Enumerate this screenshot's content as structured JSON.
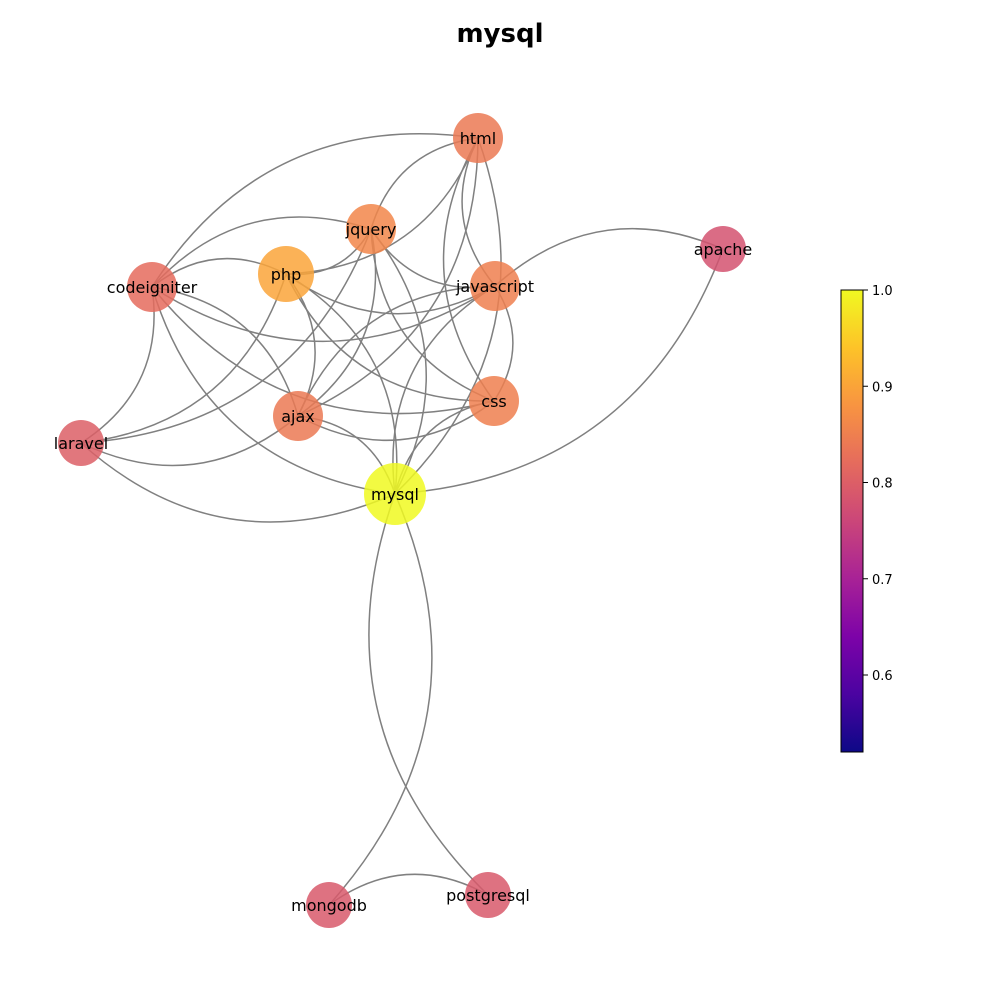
{
  "title": "mysql",
  "graph": {
    "nodes": [
      {
        "id": "html",
        "label": "html",
        "value": 0.84,
        "size": "medium"
      },
      {
        "id": "jquery",
        "label": "jquery",
        "value": 0.86,
        "size": "medium"
      },
      {
        "id": "apache",
        "label": "apache",
        "value": 0.78,
        "size": "small"
      },
      {
        "id": "codeigniter",
        "label": "codeigniter",
        "value": 0.82,
        "size": "medium"
      },
      {
        "id": "php",
        "label": "php",
        "value": 0.9,
        "size": "large"
      },
      {
        "id": "javascript",
        "label": "javascript",
        "value": 0.85,
        "size": "medium"
      },
      {
        "id": "ajax",
        "label": "ajax",
        "value": 0.84,
        "size": "medium"
      },
      {
        "id": "css",
        "label": "css",
        "value": 0.85,
        "size": "medium"
      },
      {
        "id": "laravel",
        "label": "laravel",
        "value": 0.8,
        "size": "small"
      },
      {
        "id": "mysql",
        "label": "mysql",
        "value": 1.0,
        "size": "xlarge"
      },
      {
        "id": "mongodb",
        "label": "mongodb",
        "value": 0.79,
        "size": "small"
      },
      {
        "id": "postgresql",
        "label": "postgresql",
        "value": 0.79,
        "size": "small"
      }
    ],
    "edges": [
      [
        "html",
        "jquery"
      ],
      [
        "html",
        "php"
      ],
      [
        "html",
        "javascript"
      ],
      [
        "html",
        "ajax"
      ],
      [
        "html",
        "css"
      ],
      [
        "html",
        "mysql"
      ],
      [
        "html",
        "codeigniter"
      ],
      [
        "jquery",
        "php"
      ],
      [
        "jquery",
        "javascript"
      ],
      [
        "jquery",
        "ajax"
      ],
      [
        "jquery",
        "css"
      ],
      [
        "jquery",
        "mysql"
      ],
      [
        "jquery",
        "codeigniter"
      ],
      [
        "jquery",
        "laravel"
      ],
      [
        "php",
        "javascript"
      ],
      [
        "php",
        "ajax"
      ],
      [
        "php",
        "css"
      ],
      [
        "php",
        "mysql"
      ],
      [
        "php",
        "codeigniter"
      ],
      [
        "php",
        "laravel"
      ],
      [
        "javascript",
        "ajax"
      ],
      [
        "javascript",
        "css"
      ],
      [
        "javascript",
        "mysql"
      ],
      [
        "javascript",
        "codeigniter"
      ],
      [
        "ajax",
        "css"
      ],
      [
        "ajax",
        "mysql"
      ],
      [
        "ajax",
        "codeigniter"
      ],
      [
        "ajax",
        "laravel"
      ],
      [
        "css",
        "mysql"
      ],
      [
        "css",
        "codeigniter"
      ],
      [
        "codeigniter",
        "mysql"
      ],
      [
        "codeigniter",
        "laravel"
      ],
      [
        "laravel",
        "mysql"
      ],
      [
        "apache",
        "mysql"
      ],
      [
        "apache",
        "javascript"
      ],
      [
        "mysql",
        "mongodb"
      ],
      [
        "mysql",
        "postgresql"
      ],
      [
        "mongodb",
        "postgresql"
      ]
    ]
  },
  "colorbar": {
    "min": 0.52,
    "max": 1.0,
    "ticks": [
      "0.6",
      "0.7",
      "0.8",
      "0.9",
      "1.0"
    ],
    "colormap": "plasma"
  },
  "colors": {
    "edge": "#808080"
  }
}
